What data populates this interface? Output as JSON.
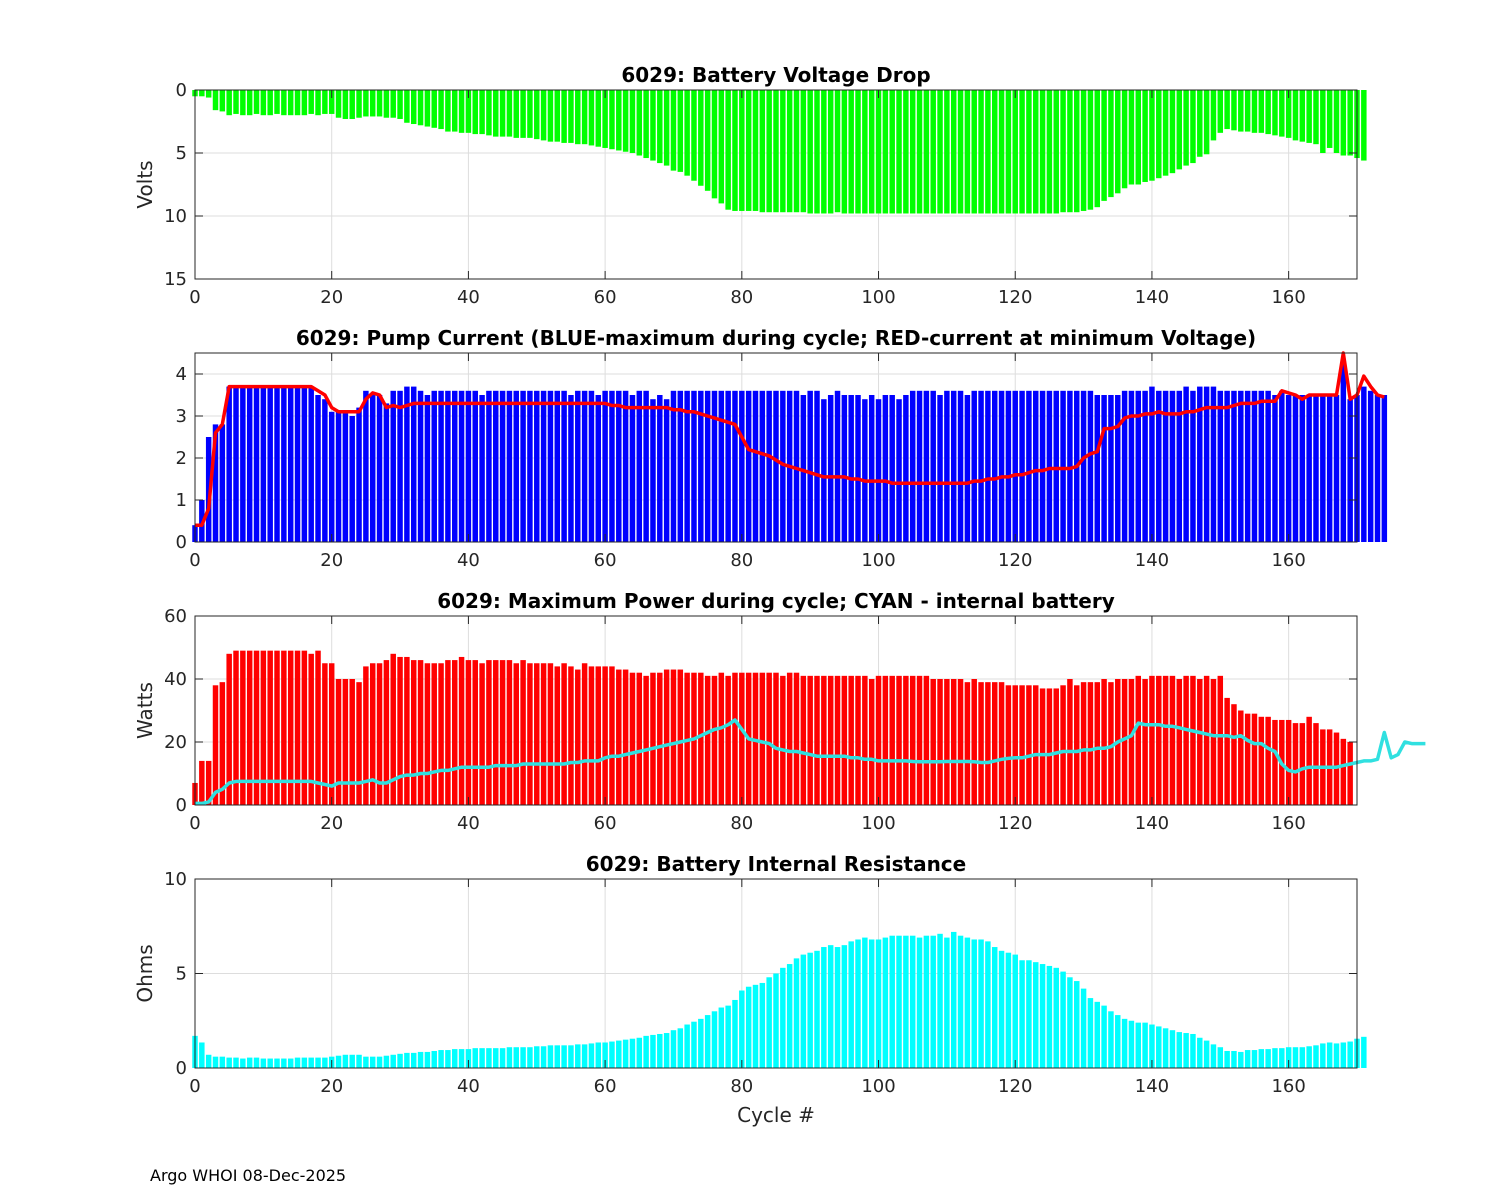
{
  "footer": "Argo WHOI 08-Dec-2025",
  "x_ticks": [
    0,
    20,
    40,
    60,
    80,
    100,
    120,
    140,
    160
  ],
  "x_range": [
    0,
    170
  ],
  "chart_data": [
    {
      "id": "voltage",
      "type": "bar",
      "title": "6029: Battery Voltage Drop",
      "ylabel": "Volts",
      "xlabel": "",
      "ylim": [
        0,
        15
      ],
      "y_reversed": true,
      "yticks": [
        0,
        5,
        10,
        15
      ],
      "grid": true,
      "bar_color": "#00ff00",
      "x_start": 0,
      "values": [
        0.5,
        0.5,
        0.6,
        1.6,
        1.7,
        2.0,
        1.9,
        2.0,
        2.0,
        1.9,
        2.0,
        2.0,
        1.9,
        2.0,
        2.0,
        2.0,
        2.0,
        1.9,
        2.0,
        1.9,
        1.9,
        2.2,
        2.3,
        2.3,
        2.2,
        2.1,
        2.1,
        2.1,
        2.2,
        2.2,
        2.3,
        2.6,
        2.7,
        2.8,
        2.9,
        3.0,
        3.1,
        3.3,
        3.3,
        3.4,
        3.4,
        3.5,
        3.5,
        3.6,
        3.7,
        3.7,
        3.7,
        3.8,
        3.8,
        3.8,
        3.9,
        4.0,
        4.1,
        4.1,
        4.2,
        4.2,
        4.3,
        4.3,
        4.4,
        4.5,
        4.6,
        4.7,
        4.8,
        4.9,
        5.0,
        5.2,
        5.4,
        5.6,
        5.8,
        6.0,
        6.4,
        6.5,
        6.8,
        7.2,
        7.6,
        8.0,
        8.6,
        9.0,
        9.5,
        9.6,
        9.6,
        9.6,
        9.6,
        9.7,
        9.7,
        9.7,
        9.7,
        9.7,
        9.7,
        9.7,
        9.8,
        9.8,
        9.8,
        9.8,
        9.7,
        9.8,
        9.8,
        9.8,
        9.8,
        9.8,
        9.8,
        9.8,
        9.8,
        9.8,
        9.8,
        9.8,
        9.8,
        9.8,
        9.8,
        9.8,
        9.8,
        9.8,
        9.8,
        9.8,
        9.8,
        9.8,
        9.8,
        9.8,
        9.8,
        9.8,
        9.8,
        9.8,
        9.8,
        9.8,
        9.8,
        9.8,
        9.8,
        9.7,
        9.7,
        9.7,
        9.6,
        9.5,
        9.3,
        8.8,
        8.5,
        8.2,
        7.8,
        7.5,
        7.5,
        7.3,
        7.2,
        7.0,
        6.8,
        6.6,
        6.3,
        6.0,
        5.8,
        5.3,
        5.1,
        4.0,
        3.4,
        3.1,
        3.2,
        3.3,
        3.3,
        3.4,
        3.4,
        3.5,
        3.6,
        3.7,
        3.8,
        4.0,
        4.1,
        4.2,
        4.3,
        5.0,
        4.6,
        5.0,
        5.2,
        5.2,
        5.4,
        5.6
      ]
    },
    {
      "id": "current",
      "type": "bar",
      "title": "6029: Pump Current (BLUE-maximum during cycle; RED-current at minimum Voltage)",
      "ylabel": "",
      "xlabel": "",
      "ylim": [
        0,
        4.5
      ],
      "yticks": [
        0,
        1,
        2,
        3,
        4
      ],
      "grid": true,
      "bar_color": "#0000ff",
      "x_start": 0,
      "values": [
        0.4,
        1.0,
        2.5,
        2.8,
        2.8,
        3.7,
        3.7,
        3.7,
        3.7,
        3.7,
        3.7,
        3.7,
        3.7,
        3.7,
        3.7,
        3.7,
        3.7,
        3.7,
        3.5,
        3.4,
        3.1,
        3.1,
        3.1,
        3.0,
        3.2,
        3.6,
        3.5,
        3.5,
        3.3,
        3.6,
        3.6,
        3.7,
        3.7,
        3.6,
        3.5,
        3.6,
        3.6,
        3.6,
        3.6,
        3.6,
        3.6,
        3.6,
        3.5,
        3.6,
        3.6,
        3.6,
        3.6,
        3.6,
        3.6,
        3.6,
        3.6,
        3.6,
        3.6,
        3.6,
        3.6,
        3.5,
        3.6,
        3.6,
        3.6,
        3.5,
        3.6,
        3.6,
        3.6,
        3.6,
        3.5,
        3.6,
        3.6,
        3.4,
        3.5,
        3.4,
        3.6,
        3.6,
        3.6,
        3.6,
        3.6,
        3.6,
        3.6,
        3.6,
        3.6,
        3.6,
        3.6,
        3.6,
        3.6,
        3.6,
        3.6,
        3.6,
        3.6,
        3.6,
        3.6,
        3.5,
        3.6,
        3.6,
        3.4,
        3.5,
        3.6,
        3.5,
        3.5,
        3.5,
        3.4,
        3.5,
        3.4,
        3.5,
        3.5,
        3.4,
        3.5,
        3.6,
        3.6,
        3.6,
        3.6,
        3.5,
        3.6,
        3.6,
        3.6,
        3.5,
        3.6,
        3.6,
        3.6,
        3.6,
        3.6,
        3.6,
        3.6,
        3.6,
        3.6,
        3.6,
        3.6,
        3.6,
        3.6,
        3.6,
        3.6,
        3.6,
        3.6,
        3.6,
        3.5,
        3.5,
        3.5,
        3.5,
        3.6,
        3.6,
        3.6,
        3.6,
        3.7,
        3.6,
        3.6,
        3.6,
        3.6,
        3.7,
        3.6,
        3.7,
        3.7,
        3.7,
        3.6,
        3.6,
        3.6,
        3.6,
        3.6,
        3.6,
        3.6,
        3.6,
        3.5,
        3.6,
        3.5,
        3.5,
        3.5,
        3.5,
        3.5,
        3.5,
        3.5,
        3.5,
        4.3,
        3.4,
        3.5,
        3.7,
        3.6,
        3.5,
        3.5
      ],
      "line": {
        "color": "#ff0000",
        "values": [
          0.4,
          0.4,
          0.8,
          2.6,
          2.8,
          3.7,
          3.7,
          3.7,
          3.7,
          3.7,
          3.7,
          3.7,
          3.7,
          3.7,
          3.7,
          3.7,
          3.7,
          3.7,
          3.6,
          3.5,
          3.2,
          3.1,
          3.1,
          3.1,
          3.1,
          3.4,
          3.55,
          3.5,
          3.2,
          3.25,
          3.2,
          3.25,
          3.3,
          3.3,
          3.3,
          3.3,
          3.3,
          3.3,
          3.3,
          3.3,
          3.3,
          3.3,
          3.3,
          3.3,
          3.3,
          3.3,
          3.3,
          3.3,
          3.3,
          3.3,
          3.3,
          3.3,
          3.3,
          3.3,
          3.3,
          3.3,
          3.3,
          3.3,
          3.3,
          3.3,
          3.3,
          3.25,
          3.25,
          3.2,
          3.2,
          3.2,
          3.2,
          3.2,
          3.2,
          3.2,
          3.15,
          3.15,
          3.1,
          3.1,
          3.05,
          3.0,
          2.95,
          2.9,
          2.85,
          2.8,
          2.5,
          2.2,
          2.15,
          2.1,
          2.05,
          1.95,
          1.85,
          1.8,
          1.75,
          1.7,
          1.65,
          1.6,
          1.55,
          1.55,
          1.55,
          1.55,
          1.5,
          1.5,
          1.45,
          1.45,
          1.45,
          1.45,
          1.4,
          1.4,
          1.4,
          1.4,
          1.4,
          1.4,
          1.4,
          1.4,
          1.4,
          1.4,
          1.4,
          1.4,
          1.45,
          1.45,
          1.5,
          1.5,
          1.55,
          1.55,
          1.6,
          1.6,
          1.65,
          1.7,
          1.7,
          1.75,
          1.75,
          1.75,
          1.75,
          1.8,
          2.0,
          2.1,
          2.15,
          2.7,
          2.7,
          2.75,
          2.95,
          3.0,
          3.0,
          3.05,
          3.05,
          3.1,
          3.05,
          3.05,
          3.05,
          3.1,
          3.1,
          3.15,
          3.2,
          3.2,
          3.2,
          3.2,
          3.25,
          3.3,
          3.3,
          3.3,
          3.35,
          3.35,
          3.35,
          3.6,
          3.55,
          3.5,
          3.4,
          3.5,
          3.5,
          3.5,
          3.5,
          3.5,
          4.5,
          3.4,
          3.5,
          3.95,
          3.7,
          3.5,
          3.45
        ]
      }
    },
    {
      "id": "power",
      "type": "bar",
      "title": "6029: Maximum Power during cycle; CYAN - internal battery",
      "ylabel": "Watts",
      "xlabel": "",
      "ylim": [
        0,
        60
      ],
      "yticks": [
        0,
        20,
        40,
        60
      ],
      "grid": true,
      "bar_color": "#ff0000",
      "x_start": 0,
      "values": [
        7,
        14,
        14,
        38,
        39,
        48,
        49,
        49,
        49,
        49,
        49,
        49,
        49,
        49,
        49,
        49,
        49,
        48,
        49,
        45,
        45,
        40,
        40,
        40,
        39,
        44,
        45,
        45,
        46,
        48,
        47,
        47,
        46,
        46,
        45,
        45,
        45,
        46,
        46,
        47,
        46,
        46,
        45,
        46,
        46,
        46,
        46,
        45,
        46,
        45,
        45,
        45,
        45,
        44,
        45,
        44,
        43,
        45,
        44,
        44,
        44,
        44,
        43,
        43,
        42,
        42,
        41,
        42,
        42,
        43,
        43,
        43,
        42,
        42,
        42,
        41,
        41,
        42,
        41,
        42,
        42,
        42,
        42,
        42,
        42,
        42,
        41,
        42,
        42,
        41,
        41,
        41,
        41,
        41,
        41,
        41,
        41,
        41,
        41,
        40,
        41,
        41,
        41,
        41,
        41,
        41,
        41,
        41,
        40,
        40,
        40,
        40,
        40,
        39,
        40,
        39,
        39,
        39,
        39,
        38,
        38,
        38,
        38,
        38,
        37,
        37,
        37,
        38,
        40,
        38,
        39,
        39,
        39,
        40,
        39,
        40,
        40,
        40,
        41,
        40,
        41,
        41,
        41,
        41,
        40,
        41,
        41,
        40,
        41,
        40,
        41,
        34,
        32,
        30,
        29,
        29,
        28,
        28,
        27,
        27,
        27,
        26,
        26,
        28,
        26,
        24,
        24,
        23,
        21,
        20
      ],
      "line": {
        "color": "#30e0e0",
        "values": [
          0.5,
          0.5,
          1,
          4,
          5,
          7,
          7.5,
          7.5,
          7.5,
          7.5,
          7.5,
          7.5,
          7.5,
          7.5,
          7.5,
          7.5,
          7.5,
          7.5,
          7,
          6.5,
          6,
          7,
          7,
          7,
          7,
          7.5,
          8,
          7,
          7,
          8,
          9,
          9.5,
          9.5,
          10,
          10,
          10.5,
          11,
          11,
          11.5,
          12,
          12,
          12,
          12,
          12,
          12.5,
          12.5,
          12.5,
          12.5,
          13,
          13,
          13,
          13,
          13,
          13,
          13,
          13.5,
          13.5,
          14,
          14,
          14,
          15,
          15.5,
          15.5,
          16,
          16.5,
          17,
          17.5,
          18,
          18.5,
          19,
          19.5,
          20,
          20.5,
          21,
          22,
          23,
          24,
          24.5,
          25.5,
          27,
          24,
          21,
          20.5,
          20,
          19.5,
          18,
          17.5,
          17,
          17,
          16.5,
          16,
          15.5,
          15.5,
          15.5,
          15.5,
          15.5,
          15,
          15,
          14.5,
          14.5,
          14,
          14,
          14,
          14,
          14,
          13.8,
          13.7,
          13.7,
          13.7,
          13.7,
          13.8,
          13.8,
          13.8,
          13.8,
          13.7,
          13.5,
          13.5,
          14,
          14.5,
          14.8,
          15,
          15,
          15.5,
          16,
          16,
          16,
          16.5,
          17,
          17,
          17,
          17.5,
          17.5,
          18,
          18,
          18.5,
          20,
          21,
          22,
          26,
          25.5,
          25.5,
          25.5,
          25,
          25,
          24.5,
          24,
          23.5,
          23,
          22.5,
          22,
          22,
          22,
          21.5,
          22,
          20.5,
          19.5,
          19.5,
          18,
          17,
          13,
          11,
          10.5,
          11.5,
          12,
          12,
          12,
          12,
          12,
          12.5,
          13,
          13.5,
          14,
          14,
          14.5,
          23,
          15,
          16,
          20,
          19.5,
          19.5,
          19.5
        ]
      }
    },
    {
      "id": "resistance",
      "type": "bar",
      "title": "6029: Battery Internal Resistance",
      "ylabel": "Ohms",
      "xlabel": "Cycle #",
      "ylim": [
        0,
        10
      ],
      "yticks": [
        0,
        5,
        10
      ],
      "grid": true,
      "bar_color": "#00ffff",
      "x_start": 0,
      "values": [
        1.7,
        1.35,
        0.7,
        0.6,
        0.6,
        0.55,
        0.55,
        0.5,
        0.55,
        0.55,
        0.5,
        0.5,
        0.5,
        0.5,
        0.5,
        0.55,
        0.55,
        0.55,
        0.55,
        0.55,
        0.6,
        0.65,
        0.7,
        0.7,
        0.7,
        0.6,
        0.6,
        0.6,
        0.65,
        0.7,
        0.75,
        0.8,
        0.8,
        0.85,
        0.85,
        0.9,
        0.95,
        0.95,
        1.0,
        1.0,
        1.0,
        1.05,
        1.05,
        1.05,
        1.05,
        1.05,
        1.1,
        1.1,
        1.1,
        1.1,
        1.15,
        1.15,
        1.2,
        1.2,
        1.2,
        1.2,
        1.25,
        1.25,
        1.3,
        1.35,
        1.35,
        1.4,
        1.45,
        1.5,
        1.55,
        1.6,
        1.7,
        1.75,
        1.8,
        1.85,
        2.0,
        2.1,
        2.3,
        2.45,
        2.6,
        2.8,
        3.0,
        3.2,
        3.3,
        3.6,
        4.1,
        4.3,
        4.4,
        4.5,
        4.8,
        5.0,
        5.3,
        5.5,
        5.8,
        6.0,
        6.1,
        6.2,
        6.4,
        6.5,
        6.4,
        6.5,
        6.7,
        6.8,
        6.9,
        6.8,
        6.8,
        6.9,
        7.0,
        7.0,
        7.0,
        7.0,
        6.9,
        7.0,
        7.0,
        7.1,
        6.9,
        7.2,
        7.0,
        6.9,
        6.8,
        6.8,
        6.7,
        6.4,
        6.2,
        6.1,
        6.0,
        5.7,
        5.7,
        5.6,
        5.5,
        5.4,
        5.3,
        5.1,
        4.8,
        4.6,
        4.2,
        3.7,
        3.5,
        3.3,
        3.0,
        2.8,
        2.6,
        2.5,
        2.4,
        2.4,
        2.3,
        2.2,
        2.1,
        2.0,
        1.9,
        1.85,
        1.8,
        1.6,
        1.45,
        1.25,
        1.1,
        0.9,
        0.9,
        0.85,
        0.95,
        0.95,
        1.0,
        1.0,
        1.05,
        1.05,
        1.1,
        1.1,
        1.1,
        1.15,
        1.2,
        1.3,
        1.35,
        1.3,
        1.35,
        1.4,
        1.55,
        1.65
      ]
    }
  ]
}
